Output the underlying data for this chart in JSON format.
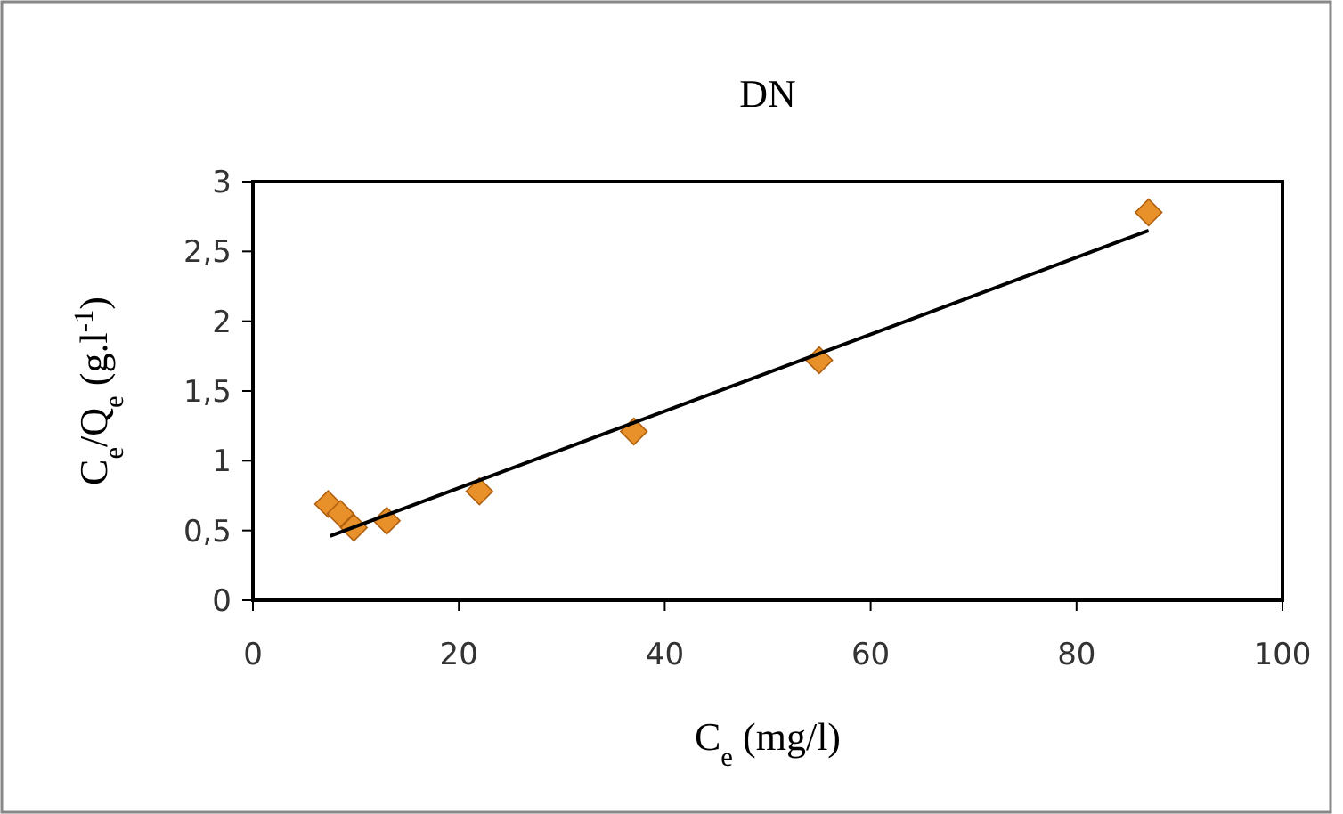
{
  "chart_data": {
    "type": "scatter",
    "title": "DN",
    "xlabel": "C$_{e}$ (mg/l)",
    "ylabel": "C$_{e}$/Q$_{e}$ (g.l$^{-1}$)",
    "xlim": [
      0,
      100
    ],
    "xticks": [
      0,
      20,
      40,
      60,
      80,
      100
    ],
    "ylim": [
      0,
      3
    ],
    "yticks": [
      0,
      {
        "value": 0.5,
        "label": "0,5"
      },
      1,
      {
        "value": 1.5,
        "label": "1,5"
      },
      2,
      {
        "value": 2.5,
        "label": "2,5"
      },
      3
    ],
    "grid": false,
    "series": [
      {
        "color": "#e8902a",
        "marker": "diamond",
        "x": [
          7.3,
          8.5,
          9.8,
          13,
          22,
          37,
          55,
          87
        ],
        "values": [
          0.69,
          0.62,
          0.52,
          0.57,
          0.78,
          1.21,
          1.72,
          2.78
        ]
      },
      {
        "type": "line",
        "color": "#000000",
        "x": [
          7.5,
          87
        ],
        "values": [
          0.46,
          2.65
        ],
        "marker": "none",
        "line_style": "solid"
      }
    ]
  }
}
